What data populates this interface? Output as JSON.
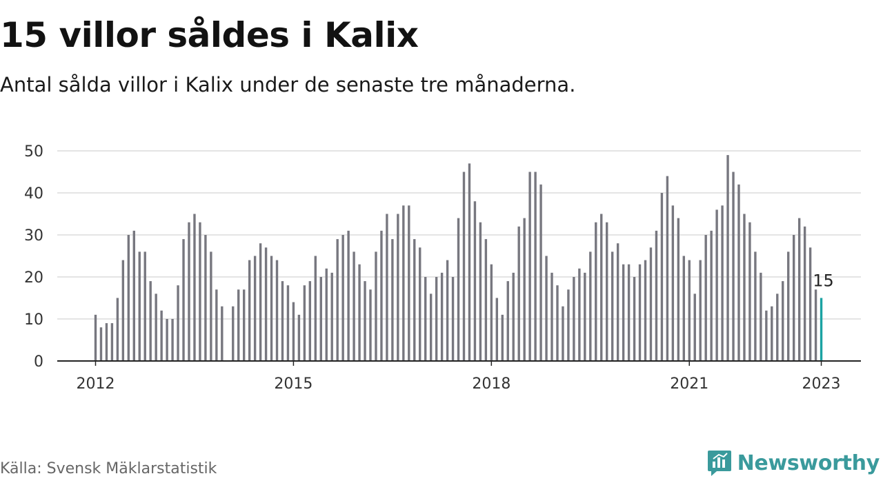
{
  "title": "15 villor såldes i Kalix",
  "subtitle": "Antal sålda villor i Kalix under de senaste tre månaderna.",
  "source": "Källa: Svensk Mäklarstatistik",
  "brand": {
    "name": "Newsworthy",
    "icon": "newsworthy-logo-icon"
  },
  "colors": {
    "bar": "#77777f",
    "highlight": "#1ba3a3",
    "grid": "#dcdcdc",
    "axis": "#222222",
    "brand": "#3a9a9c"
  },
  "chart_data": {
    "type": "bar",
    "title": "15 villor såldes i Kalix",
    "xlabel": "",
    "ylabel": "",
    "ylim": [
      0,
      50
    ],
    "yticks": [
      0,
      10,
      20,
      30,
      40,
      50
    ],
    "xticks": [
      "2012",
      "2015",
      "2018",
      "2021",
      "2023"
    ],
    "grid": true,
    "start": "2012-01",
    "end": "2023-01",
    "frequency": "monthly",
    "values": [
      11,
      8,
      9,
      9,
      15,
      24,
      30,
      31,
      26,
      26,
      19,
      16,
      12,
      10,
      10,
      18,
      29,
      33,
      35,
      33,
      30,
      26,
      17,
      13,
      0,
      13,
      17,
      17,
      24,
      25,
      28,
      27,
      25,
      24,
      19,
      18,
      14,
      11,
      18,
      19,
      25,
      20,
      22,
      21,
      29,
      30,
      31,
      26,
      23,
      19,
      17,
      26,
      31,
      35,
      29,
      35,
      37,
      37,
      29,
      27,
      20,
      16,
      20,
      21,
      24,
      20,
      34,
      45,
      47,
      38,
      33,
      29,
      23,
      15,
      11,
      19,
      21,
      32,
      34,
      45,
      45,
      42,
      25,
      21,
      18,
      13,
      17,
      20,
      22,
      21,
      26,
      33,
      35,
      33,
      26,
      28,
      23,
      23,
      20,
      23,
      24,
      27,
      31,
      40,
      44,
      37,
      34,
      25,
      24,
      16,
      24,
      30,
      31,
      36,
      37,
      49,
      45,
      42,
      35,
      33,
      26,
      21,
      12,
      13,
      16,
      19,
      26,
      30,
      34,
      32,
      27,
      17,
      15
    ],
    "highlight": {
      "label": "15",
      "value": 15,
      "period": "2023-01"
    }
  }
}
